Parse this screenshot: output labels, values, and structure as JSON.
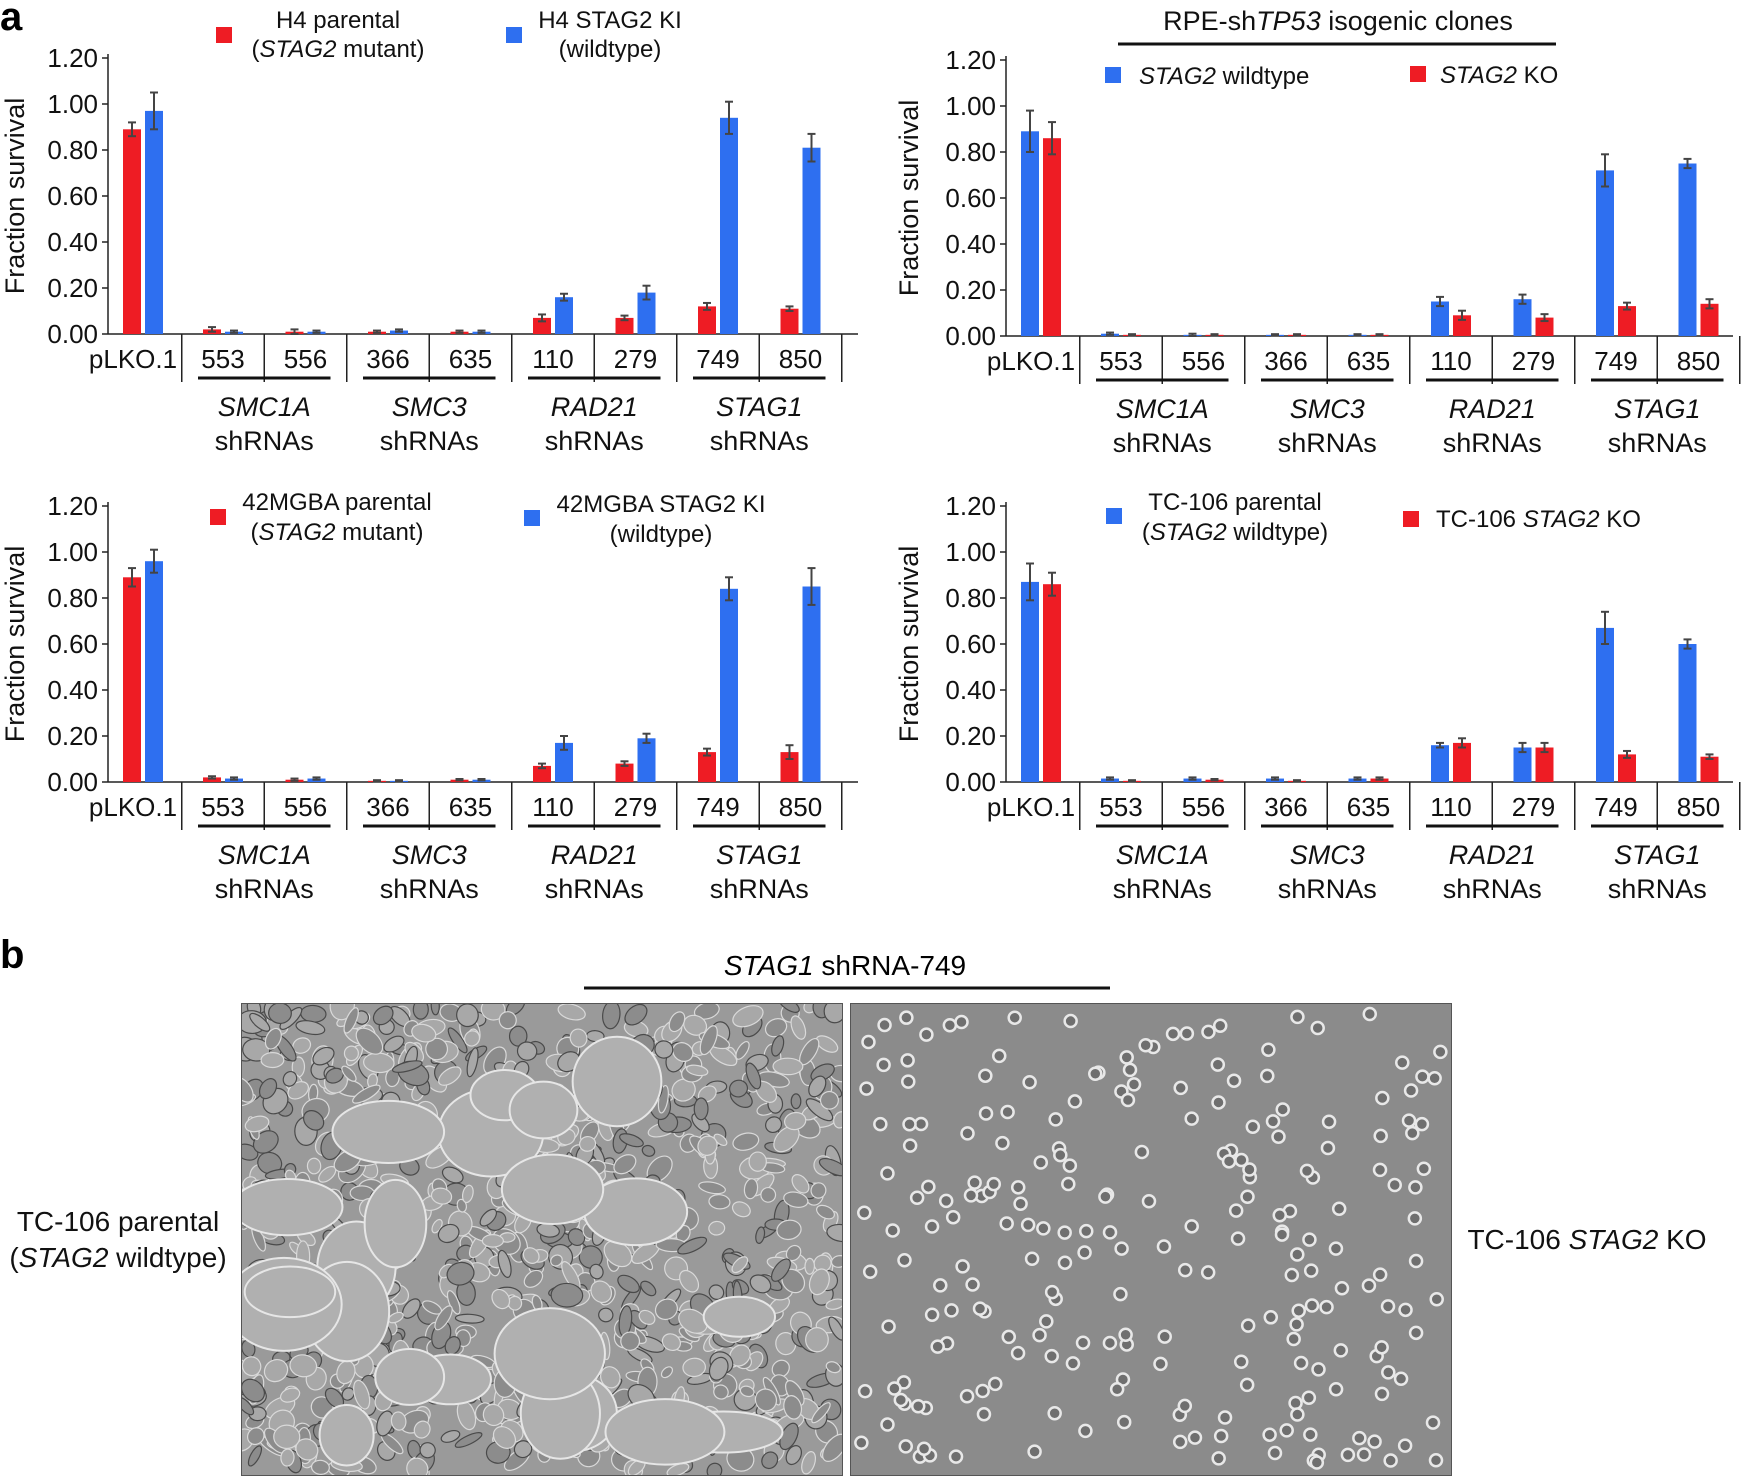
{
  "figure": {
    "panel_a_label": "a",
    "panel_b_label": "b"
  },
  "chart_data": [
    {
      "type": "bar",
      "title": "",
      "ylabel": "Fraction survival",
      "ylim": [
        0,
        1.2
      ],
      "yticks": [
        "0.00",
        "0.20",
        "0.40",
        "0.60",
        "0.80",
        "1.00",
        "1.20"
      ],
      "control_label": "pLKO.1",
      "categories": [
        "pLKO.1",
        "553",
        "556",
        "366",
        "635",
        "110",
        "279",
        "749",
        "850"
      ],
      "groups": [
        {
          "name": "SMC1A",
          "suffix": "shRNAs",
          "labels": [
            "553",
            "556"
          ]
        },
        {
          "name": "SMC3",
          "suffix": "shRNAs",
          "labels": [
            "366",
            "635"
          ]
        },
        {
          "name": "RAD21",
          "suffix": "shRNAs",
          "labels": [
            "110",
            "279"
          ]
        },
        {
          "name": "STAG1",
          "suffix": "shRNAs",
          "labels": [
            "749",
            "850"
          ]
        }
      ],
      "series": [
        {
          "name": "H4 parental (STAG2 mutant)",
          "legend_line1": "H4 parental",
          "legend_line2_italic": "STAG2",
          "legend_line2_rest": " mutant",
          "legend_line2_paren": true,
          "color": "#ee1c24",
          "values": [
            0.89,
            0.02,
            0.01,
            0.01,
            0.01,
            0.07,
            0.07,
            0.12,
            0.11
          ],
          "errors": [
            0.03,
            0.01,
            0.01,
            0.005,
            0.005,
            0.015,
            0.01,
            0.015,
            0.01
          ]
        },
        {
          "name": "H4 STAG2 KI (wildtype)",
          "legend_line1": "H4 STAG2 KI",
          "legend_line2_italic": "",
          "legend_line2_rest": "(wildtype)",
          "legend_line2_paren": false,
          "color": "#2e6ff0",
          "values": [
            0.97,
            0.01,
            0.01,
            0.015,
            0.01,
            0.16,
            0.18,
            0.94,
            0.81
          ],
          "errors": [
            0.08,
            0.005,
            0.005,
            0.005,
            0.005,
            0.015,
            0.03,
            0.07,
            0.06
          ]
        }
      ]
    },
    {
      "type": "bar",
      "title_prefix": "RPE-sh",
      "title_italic": "TP53",
      "title_suffix": " isogenic clones",
      "ylabel": "Fraction survival",
      "ylim": [
        0,
        1.2
      ],
      "yticks": [
        "0.00",
        "0.20",
        "0.40",
        "0.60",
        "0.80",
        "1.00",
        "1.20"
      ],
      "control_label": "pLKO.1",
      "categories": [
        "pLKO.1",
        "553",
        "556",
        "366",
        "635",
        "110",
        "279",
        "749",
        "850"
      ],
      "groups": [
        {
          "name": "SMC1A",
          "suffix": "shRNAs",
          "labels": [
            "553",
            "556"
          ]
        },
        {
          "name": "SMC3",
          "suffix": "shRNAs",
          "labels": [
            "366",
            "635"
          ]
        },
        {
          "name": "RAD21",
          "suffix": "shRNAs",
          "labels": [
            "110",
            "279"
          ]
        },
        {
          "name": "STAG1",
          "suffix": "shRNAs",
          "labels": [
            "749",
            "850"
          ]
        }
      ],
      "series": [
        {
          "name": "STAG2 wildtype",
          "legend_line1_italic": "STAG2",
          "legend_line1_rest": " wildtype",
          "color": "#2e6ff0",
          "values": [
            0.89,
            0.01,
            0.005,
            0.005,
            0.005,
            0.15,
            0.16,
            0.72,
            0.75
          ],
          "errors": [
            0.09,
            0.005,
            0.005,
            0.003,
            0.003,
            0.02,
            0.02,
            0.07,
            0.02
          ]
        },
        {
          "name": "STAG2 KO",
          "legend_line1_italic": "STAG2",
          "legend_line1_rest": " KO",
          "color": "#ee1c24",
          "values": [
            0.86,
            0.005,
            0.005,
            0.005,
            0.005,
            0.09,
            0.08,
            0.13,
            0.14
          ],
          "errors": [
            0.07,
            0.003,
            0.003,
            0.003,
            0.003,
            0.02,
            0.015,
            0.015,
            0.02
          ]
        }
      ]
    },
    {
      "type": "bar",
      "title": "",
      "ylabel": "Fraction survival",
      "ylim": [
        0,
        1.2
      ],
      "yticks": [
        "0.00",
        "0.20",
        "0.40",
        "0.60",
        "0.80",
        "1.00",
        "1.20"
      ],
      "control_label": "pLKO.1",
      "categories": [
        "pLKO.1",
        "553",
        "556",
        "366",
        "635",
        "110",
        "279",
        "749",
        "850"
      ],
      "groups": [
        {
          "name": "SMC1A",
          "suffix": "shRNAs",
          "labels": [
            "553",
            "556"
          ]
        },
        {
          "name": "SMC3",
          "suffix": "shRNAs",
          "labels": [
            "366",
            "635"
          ]
        },
        {
          "name": "RAD21",
          "suffix": "shRNAs",
          "labels": [
            "110",
            "279"
          ]
        },
        {
          "name": "STAG1",
          "suffix": "shRNAs",
          "labels": [
            "749",
            "850"
          ]
        }
      ],
      "series": [
        {
          "name": "42MGBA parental (STAG2 mutant)",
          "legend_line1": "42MGBA parental",
          "legend_line2_italic": "STAG2",
          "legend_line2_rest": " mutant",
          "legend_line2_paren": true,
          "color": "#ee1c24",
          "values": [
            0.89,
            0.02,
            0.01,
            0.005,
            0.01,
            0.07,
            0.08,
            0.13,
            0.13
          ],
          "errors": [
            0.04,
            0.005,
            0.005,
            0.003,
            0.003,
            0.01,
            0.01,
            0.015,
            0.03
          ]
        },
        {
          "name": "42MGBA STAG2 KI (wildtype)",
          "legend_line1": "42MGBA STAG2 KI",
          "legend_line2_italic": "",
          "legend_line2_rest": "(wildtype)",
          "legend_line2_paren": false,
          "color": "#2e6ff0",
          "values": [
            0.96,
            0.015,
            0.015,
            0.005,
            0.01,
            0.17,
            0.19,
            0.84,
            0.85
          ],
          "errors": [
            0.05,
            0.005,
            0.005,
            0.003,
            0.003,
            0.03,
            0.02,
            0.05,
            0.08
          ]
        }
      ]
    },
    {
      "type": "bar",
      "title": "",
      "ylabel": "Fraction survival",
      "ylim": [
        0,
        1.2
      ],
      "yticks": [
        "0.00",
        "0.20",
        "0.40",
        "0.60",
        "0.80",
        "1.00",
        "1.20"
      ],
      "control_label": "pLKO.1",
      "categories": [
        "pLKO.1",
        "553",
        "556",
        "366",
        "635",
        "110",
        "279",
        "749",
        "850"
      ],
      "groups": [
        {
          "name": "SMC1A",
          "suffix": "shRNAs",
          "labels": [
            "553",
            "556"
          ]
        },
        {
          "name": "SMC3",
          "suffix": "shRNAs",
          "labels": [
            "366",
            "635"
          ]
        },
        {
          "name": "RAD21",
          "suffix": "shRNAs",
          "labels": [
            "110",
            "279"
          ]
        },
        {
          "name": "STAG1",
          "suffix": "shRNAs",
          "labels": [
            "749",
            "850"
          ]
        }
      ],
      "series": [
        {
          "name": "TC-106 parental (STAG2 wildtype)",
          "legend_line1": "TC-106 parental",
          "legend_line2_italic": "STAG2",
          "legend_line2_rest": " wildtype",
          "legend_line2_paren": true,
          "color": "#2e6ff0",
          "values": [
            0.87,
            0.015,
            0.015,
            0.015,
            0.015,
            0.16,
            0.15,
            0.67,
            0.6
          ],
          "errors": [
            0.08,
            0.005,
            0.005,
            0.005,
            0.005,
            0.01,
            0.02,
            0.07,
            0.02
          ]
        },
        {
          "name": "TC-106 STAG2 KO",
          "legend_line1": "TC-106 ",
          "legend_line1_italic": "STAG2",
          "legend_line1_rest": " KO",
          "color": "#ee1c24",
          "values": [
            0.86,
            0.005,
            0.01,
            0.005,
            0.015,
            0.17,
            0.15,
            0.12,
            0.11
          ],
          "errors": [
            0.05,
            0.003,
            0.003,
            0.003,
            0.005,
            0.02,
            0.02,
            0.015,
            0.01
          ]
        }
      ]
    }
  ],
  "panel_b": {
    "title_italic": "STAG1",
    "title_rest": " shRNA-749",
    "left_label_line1": "TC-106 parental",
    "left_label_line2_italic": "STAG2",
    "left_label_line2_rest": " wildtype",
    "right_label_prefix": "TC-106 ",
    "right_label_italic": "STAG2",
    "right_label_suffix": " KO"
  }
}
